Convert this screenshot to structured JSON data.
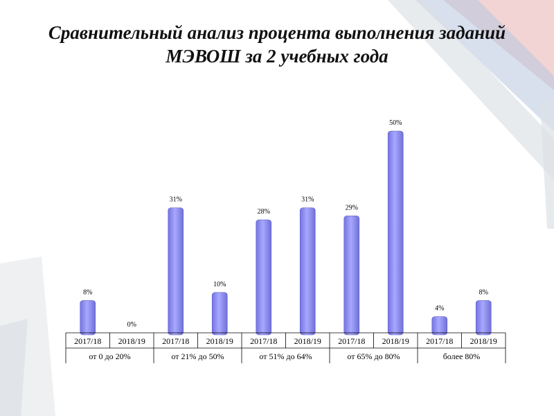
{
  "title_line1": "Сравнительный анализ процента выполнения заданий",
  "title_line2": "МЭВОШ за 2 учебных года",
  "colors": {
    "bar": "#9999ff",
    "bar_edge": "#5f5fc8",
    "text": "#000000"
  },
  "chart_data": {
    "type": "bar",
    "title": "Сравнительный анализ процента выполнения заданий МЭВОШ за 2 учебных года",
    "groups": [
      "от 0 до 20%",
      "от 21% до 50%",
      "от 51% до 64%",
      "от 65% до 80%",
      "более 80%"
    ],
    "subcategories": [
      "2017/18",
      "2018/19"
    ],
    "values": [
      [
        8,
        0
      ],
      [
        31,
        10
      ],
      [
        28,
        31
      ],
      [
        29,
        50
      ],
      [
        4,
        8
      ]
    ],
    "labels": [
      [
        "8%",
        "0%"
      ],
      [
        "31%",
        "10%"
      ],
      [
        "28%",
        "31%"
      ],
      [
        "29%",
        "50%"
      ],
      [
        "4%",
        "8%"
      ]
    ],
    "unit": "%",
    "ylim": [
      0,
      55
    ],
    "grid": false,
    "legend": "none"
  }
}
